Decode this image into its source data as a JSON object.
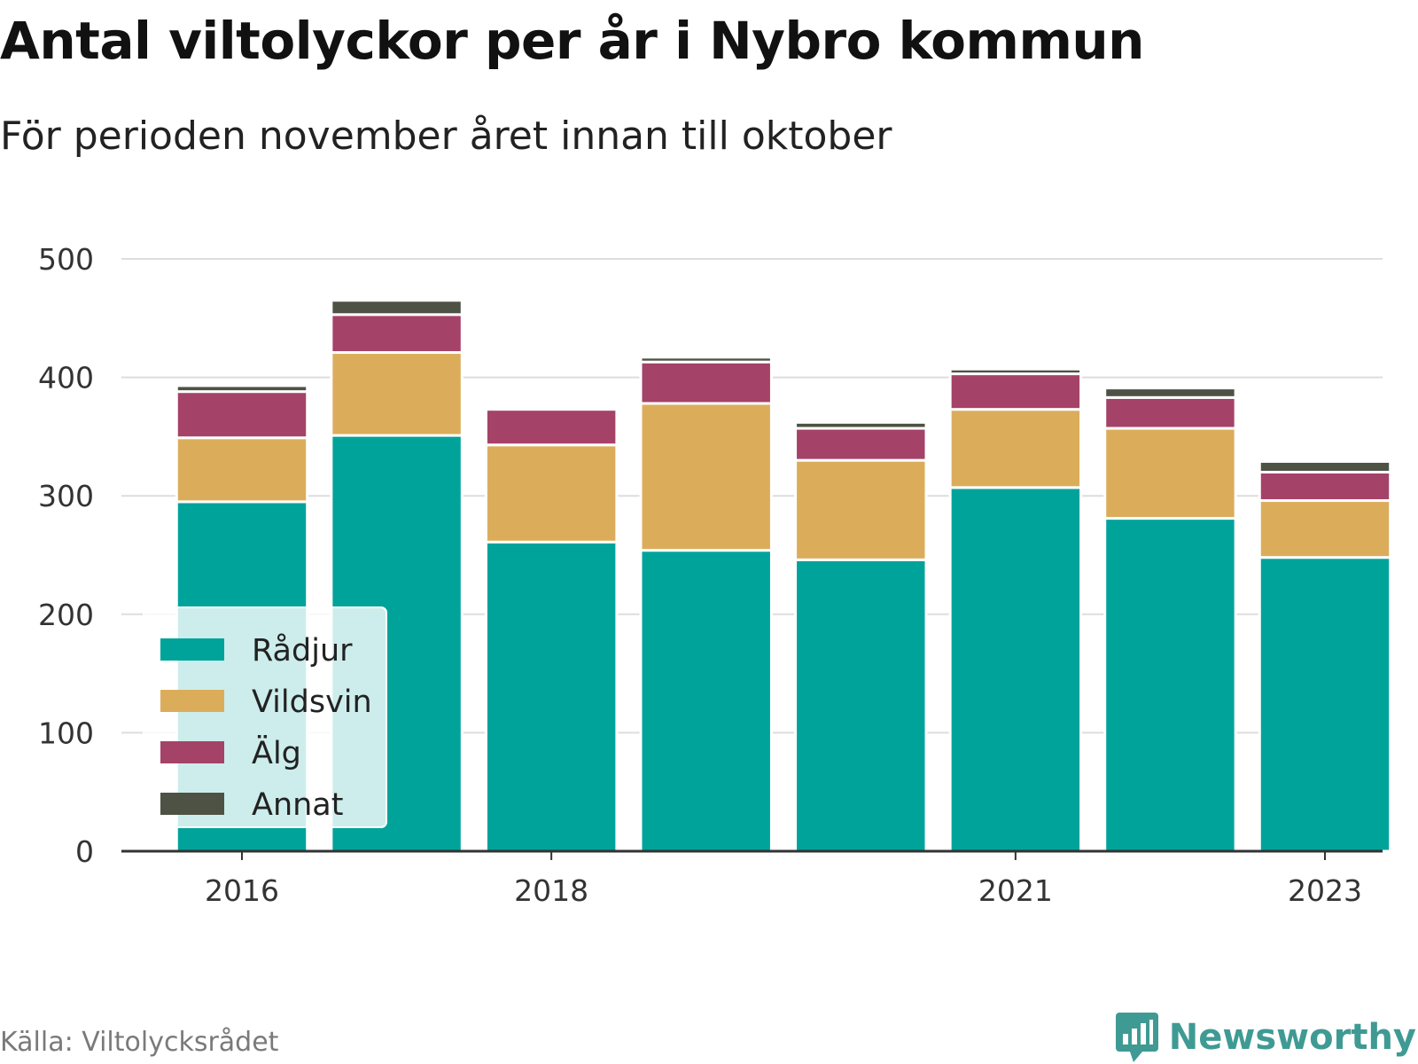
{
  "header": {
    "title": "Antal viltolyckor per år i Nybro kommun",
    "subtitle": "För perioden november året innan till oktober"
  },
  "footer": {
    "source": "Källa: Viltolycksrådet",
    "brand": "Newsworthy",
    "brand_icon": "bar-chart-bubble-icon"
  },
  "colors": {
    "Rådjur": "#00a39a",
    "Vildsvin": "#dbad5b",
    "Älg": "#a54268",
    "Annat": "#4d5244",
    "grid": "#dddddd",
    "axis": "#333333",
    "brand": "#3f9a94"
  },
  "chart_data": {
    "type": "bar",
    "stacked": true,
    "categories": [
      2016,
      2017,
      2018,
      2019,
      2020,
      2021,
      2022,
      2023
    ],
    "x_tick_labels": [
      "2016",
      "2018",
      "2021",
      "2023"
    ],
    "y_ticks": [
      0,
      100,
      200,
      300,
      400,
      500
    ],
    "ylim": [
      0,
      500
    ],
    "grid": true,
    "legend_position": "bottom-left",
    "series": [
      {
        "name": "Rådjur",
        "values": [
          295,
          351,
          261,
          254,
          246,
          307,
          281,
          248
        ]
      },
      {
        "name": "Vildsvin",
        "values": [
          54,
          70,
          82,
          124,
          84,
          66,
          76,
          48
        ]
      },
      {
        "name": "Älg",
        "values": [
          39,
          32,
          30,
          35,
          27,
          30,
          26,
          24
        ]
      },
      {
        "name": "Annat",
        "values": [
          5,
          12,
          0,
          4,
          5,
          4,
          8,
          9
        ]
      }
    ]
  }
}
